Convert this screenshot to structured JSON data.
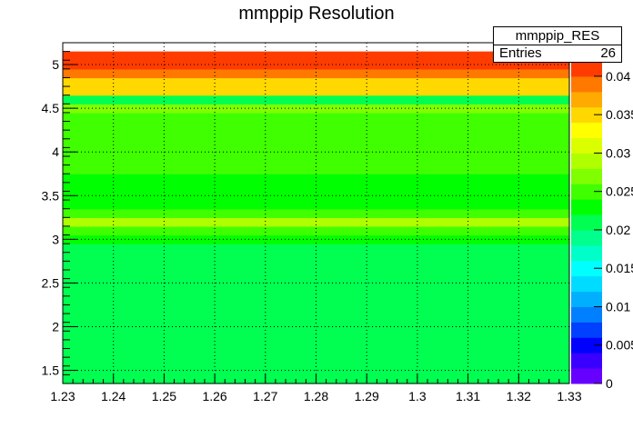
{
  "title": "mmppip Resolution",
  "stats_box": {
    "name": "mmppip_RES",
    "entries_label": "Entries",
    "entries_value": "26"
  },
  "chart_data": {
    "type": "heatmap",
    "title": "mmppip Resolution",
    "xlabel": "",
    "ylabel": "",
    "xlim": [
      1.23,
      1.33
    ],
    "ylim": [
      1.35,
      5.25
    ],
    "x_ticks": [
      "1.23",
      "1.24",
      "1.25",
      "1.26",
      "1.27",
      "1.28",
      "1.29",
      "1.3",
      "1.31",
      "1.32",
      "1.33"
    ],
    "y_ticks": [
      "1.5",
      "2",
      "2.5",
      "3",
      "3.5",
      "4",
      "4.5",
      "5"
    ],
    "z_ticks": [
      "0",
      "0.005",
      "0.01",
      "0.015",
      "0.02",
      "0.025",
      "0.03",
      "0.035",
      "0.04"
    ],
    "zlim": [
      0,
      0.042
    ],
    "grid": true,
    "bands": [
      {
        "y0": 1.35,
        "y1": 1.45,
        "value": 0.021
      },
      {
        "y0": 1.45,
        "y1": 1.55,
        "value": 0.022
      },
      {
        "y0": 1.55,
        "y1": 1.65,
        "value": 0.021
      },
      {
        "y0": 1.65,
        "y1": 1.75,
        "value": 0.022
      },
      {
        "y0": 1.75,
        "y1": 1.85,
        "value": 0.022
      },
      {
        "y0": 1.85,
        "y1": 1.95,
        "value": 0.022
      },
      {
        "y0": 1.95,
        "y1": 2.05,
        "value": 0.022
      },
      {
        "y0": 2.05,
        "y1": 2.15,
        "value": 0.022
      },
      {
        "y0": 2.15,
        "y1": 2.25,
        "value": 0.022
      },
      {
        "y0": 2.25,
        "y1": 2.35,
        "value": 0.022
      },
      {
        "y0": 2.35,
        "y1": 2.45,
        "value": 0.022
      },
      {
        "y0": 2.45,
        "y1": 2.55,
        "value": 0.022
      },
      {
        "y0": 2.55,
        "y1": 2.65,
        "value": 0.022
      },
      {
        "y0": 2.65,
        "y1": 2.75,
        "value": 0.022
      },
      {
        "y0": 2.75,
        "y1": 2.85,
        "value": 0.022
      },
      {
        "y0": 2.85,
        "y1": 2.95,
        "value": 0.022
      },
      {
        "y0": 2.95,
        "y1": 3.05,
        "value": 0.0225
      },
      {
        "y0": 3.05,
        "y1": 3.15,
        "value": 0.025
      },
      {
        "y0": 3.15,
        "y1": 3.25,
        "value": 0.029
      },
      {
        "y0": 3.25,
        "y1": 3.35,
        "value": 0.025
      },
      {
        "y0": 3.35,
        "y1": 3.45,
        "value": 0.023
      },
      {
        "y0": 3.45,
        "y1": 3.55,
        "value": 0.023
      },
      {
        "y0": 3.55,
        "y1": 3.65,
        "value": 0.023
      },
      {
        "y0": 3.65,
        "y1": 3.75,
        "value": 0.023
      },
      {
        "y0": 3.75,
        "y1": 3.85,
        "value": 0.025
      },
      {
        "y0": 3.85,
        "y1": 3.95,
        "value": 0.025
      },
      {
        "y0": 3.95,
        "y1": 4.05,
        "value": 0.025
      },
      {
        "y0": 4.05,
        "y1": 4.15,
        "value": 0.025
      },
      {
        "y0": 4.15,
        "y1": 4.25,
        "value": 0.025
      },
      {
        "y0": 4.25,
        "y1": 4.35,
        "value": 0.0255
      },
      {
        "y0": 4.35,
        "y1": 4.45,
        "value": 0.025
      },
      {
        "y0": 4.45,
        "y1": 4.55,
        "value": 0.027
      },
      {
        "y0": 4.55,
        "y1": 4.65,
        "value": 0.021
      },
      {
        "y0": 4.65,
        "y1": 4.75,
        "value": 0.034
      },
      {
        "y0": 4.75,
        "y1": 4.85,
        "value": 0.036
      },
      {
        "y0": 4.85,
        "y1": 4.95,
        "value": 0.039
      },
      {
        "y0": 4.95,
        "y1": 5.05,
        "value": 0.0415
      },
      {
        "y0": 5.05,
        "y1": 5.15,
        "value": 0.0425
      }
    ],
    "palette": [
      "#6600ff",
      "#3a00ff",
      "#0000ff",
      "#0040ff",
      "#0080ff",
      "#00b0ff",
      "#00dcff",
      "#00ffff",
      "#00ffc8",
      "#00ff8c",
      "#00ff50",
      "#00ff00",
      "#40ff00",
      "#80ff00",
      "#b0ff00",
      "#dcff00",
      "#ffff00",
      "#ffd800",
      "#ffaa00",
      "#ff7800",
      "#ff3c00"
    ]
  }
}
